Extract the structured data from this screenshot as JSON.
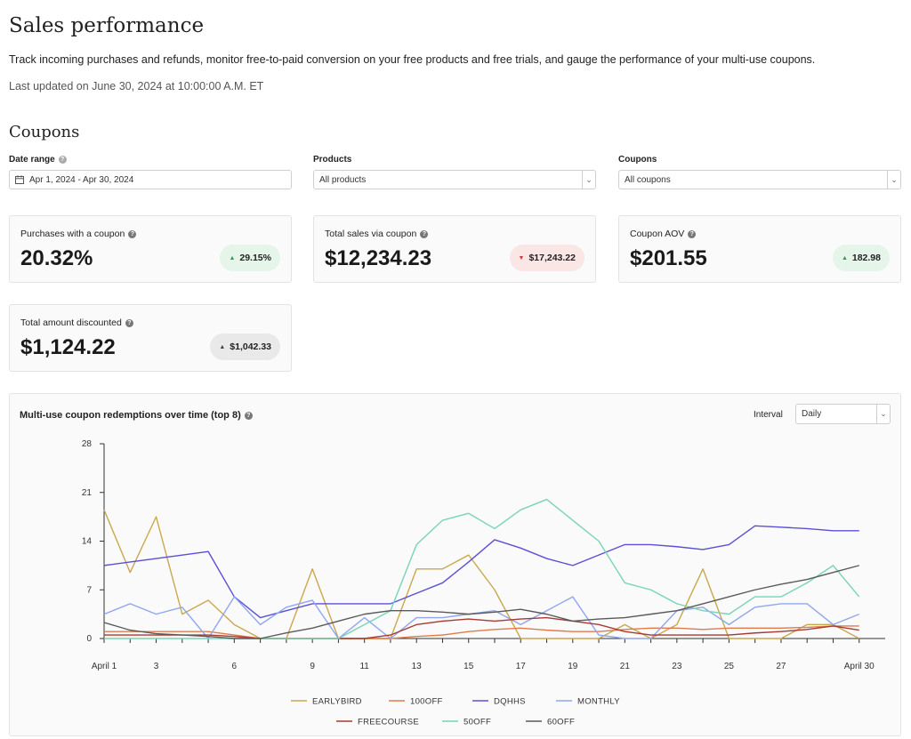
{
  "page": {
    "title": "Sales performance",
    "description": "Track incoming purchases and refunds, monitor free-to-paid conversion on your free products and free trials, and gauge the performance of your multi-use coupons.",
    "last_updated": "Last updated on June 30, 2024 at 10:00:00 A.M. ET"
  },
  "section": {
    "title": "Coupons"
  },
  "filters": {
    "date_range": {
      "label": "Date range",
      "value": "Apr 1, 2024 - Apr 30, 2024"
    },
    "products": {
      "label": "Products",
      "value": "All products"
    },
    "coupons": {
      "label": "Coupons",
      "value": "All coupons"
    }
  },
  "metrics": [
    {
      "label": "Purchases with a coupon",
      "value": "20.32%",
      "delta": "29.15%",
      "trend": "up"
    },
    {
      "label": "Total sales via coupon",
      "value": "$12,234.23",
      "delta": "$17,243.22",
      "trend": "down"
    },
    {
      "label": "Coupon AOV",
      "value": "$201.55",
      "delta": "182.98",
      "trend": "up"
    },
    {
      "label": "Total amount discounted",
      "value": "$1,124.22",
      "delta": "$1,042.33",
      "trend": "neutral"
    }
  ],
  "chart_panel": {
    "title": "Multi-use coupon redemptions over time (top 8)",
    "interval_label": "Interval",
    "interval_value": "Daily"
  },
  "icons": {
    "help": "help-circle-icon",
    "calendar": "calendar-icon",
    "chevron": "chevron-down-icon",
    "arrow_up": "triangle-up-icon",
    "arrow_down": "triangle-down-icon"
  },
  "colors": {
    "up_badge": "#e6f5e9",
    "down_badge": "#fbe6e6",
    "neutral_badge": "#e9e9e9",
    "up_arrow": "#2e9b4c",
    "down_arrow": "#d23a3a"
  },
  "chart_data": {
    "type": "line",
    "x": [
      1,
      2,
      3,
      4,
      5,
      6,
      7,
      8,
      9,
      10,
      11,
      12,
      13,
      14,
      15,
      16,
      17,
      18,
      19,
      20,
      21,
      22,
      23,
      24,
      25,
      26,
      27,
      28,
      29,
      30
    ],
    "x_tick_labels": [
      {
        "x": 1,
        "label": "April 1"
      },
      {
        "x": 3,
        "label": "3"
      },
      {
        "x": 6,
        "label": "6"
      },
      {
        "x": 9,
        "label": "9"
      },
      {
        "x": 11,
        "label": "11"
      },
      {
        "x": 13,
        "label": "13"
      },
      {
        "x": 15,
        "label": "15"
      },
      {
        "x": 17,
        "label": "17"
      },
      {
        "x": 19,
        "label": "19"
      },
      {
        "x": 21,
        "label": "21"
      },
      {
        "x": 23,
        "label": "23"
      },
      {
        "x": 25,
        "label": "25"
      },
      {
        "x": 27,
        "label": "27"
      },
      {
        "x": 30,
        "label": "April 30"
      }
    ],
    "y_ticks": [
      0,
      7,
      14,
      21,
      28
    ],
    "ylim": [
      0,
      28
    ],
    "xlim": [
      1,
      31
    ],
    "legend_position": "bottom",
    "series": [
      {
        "name": "EARLYBIRD",
        "color": "#c9a84c",
        "values": [
          18.5,
          9.5,
          17.5,
          3.5,
          5.5,
          2,
          0,
          0,
          10,
          0,
          0,
          0,
          10,
          10,
          12,
          7,
          0,
          0,
          0,
          0,
          2,
          0,
          2,
          10,
          0,
          0,
          0,
          2,
          2,
          0
        ]
      },
      {
        "name": "100OFF",
        "color": "#e07a4a",
        "values": [
          1,
          1,
          1,
          1,
          1,
          0.5,
          0,
          0,
          0,
          0,
          0,
          0,
          0.3,
          0.5,
          1,
          1.3,
          1.5,
          1.2,
          1,
          1,
          1.3,
          1.5,
          1.5,
          1.3,
          1.5,
          1.5,
          1.5,
          1.6,
          1.8,
          1.8
        ]
      },
      {
        "name": "DQHHS",
        "color": "#5b4fd6",
        "values": [
          10.5,
          11,
          11.5,
          12,
          12.5,
          6,
          3,
          4,
          5,
          5,
          5,
          5,
          6.5,
          8,
          11,
          14.2,
          13,
          11.5,
          10.5,
          12,
          13.5,
          13.5,
          13.2,
          12.8,
          13.5,
          16.2,
          16,
          15.8,
          15.5,
          15.5
        ]
      },
      {
        "name": "MONTHLY",
        "color": "#8fa6ee",
        "values": [
          3.5,
          5,
          3.5,
          4.5,
          0,
          6,
          2,
          4.5,
          5.5,
          0,
          3,
          0,
          3,
          3,
          3.5,
          4,
          2,
          4,
          6,
          0.5,
          0,
          0,
          4,
          4.5,
          2,
          4.5,
          5,
          5,
          2,
          3.5
        ]
      },
      {
        "name": "FREECOURSE",
        "color": "#a83a32",
        "values": [
          0.5,
          0.5,
          0.5,
          0.5,
          0.5,
          0.3,
          0,
          0,
          0,
          0,
          0,
          0.5,
          2,
          2.5,
          2.8,
          2.5,
          2.8,
          3,
          2.5,
          2,
          1,
          0.5,
          0.5,
          0.5,
          0.5,
          0.8,
          1,
          1.3,
          1.8,
          1.2
        ]
      },
      {
        "name": "50OFF",
        "color": "#78d4b6",
        "values": [
          0,
          0,
          0,
          0,
          0,
          0,
          0,
          0,
          0,
          0,
          2,
          4,
          13.5,
          17,
          18,
          15.8,
          18.5,
          20,
          17,
          14,
          8,
          7,
          5,
          4,
          3.5,
          6,
          6,
          8,
          10.5,
          6
        ]
      },
      {
        "name": "60OFF",
        "color": "#5a5a5a",
        "values": [
          2.3,
          1.2,
          0.7,
          0.5,
          0.3,
          0,
          0,
          0.8,
          1.5,
          2.5,
          3.5,
          4,
          4,
          3.8,
          3.5,
          3.8,
          4.2,
          3.5,
          2.5,
          2.8,
          3,
          3.5,
          4,
          5,
          6,
          7,
          7.8,
          8.5,
          9.5,
          10.5
        ]
      }
    ]
  }
}
